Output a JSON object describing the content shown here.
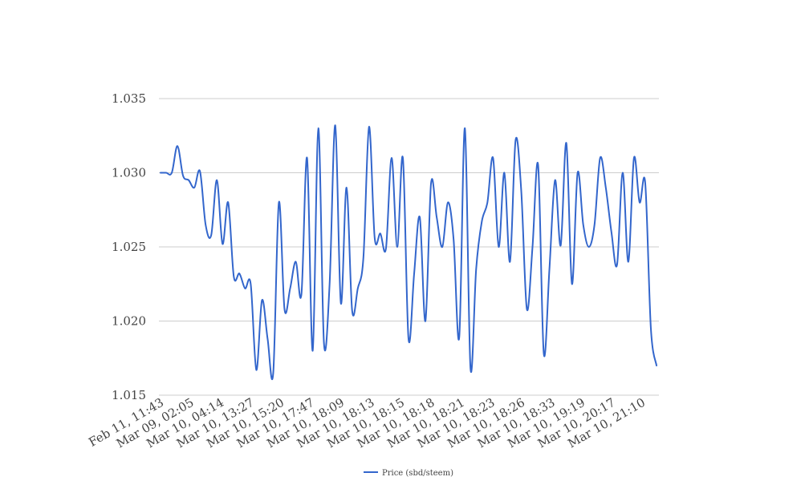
{
  "chart_data": {
    "type": "line",
    "title": "",
    "xlabel": "",
    "ylabel": "",
    "ylim": [
      1.015,
      1.035
    ],
    "yticks": [
      "1.015",
      "1.020",
      "1.025",
      "1.030",
      "1.035"
    ],
    "grid": true,
    "legend_position": "bottom",
    "xtick_labels": [
      "Feb 11, 11:43",
      "Mar 09, 02:05",
      "Mar 10, 04:14",
      "Mar 10, 13:27",
      "Mar 10, 15:20",
      "Mar 10, 17:47",
      "Mar 10, 18:09",
      "Mar 10, 18:13",
      "Mar 10, 18:15",
      "Mar 10, 18:18",
      "Mar 10, 18:21",
      "Mar 10, 18:23",
      "Mar 10, 18:26",
      "Mar 10, 18:33",
      "Mar 10, 19:19",
      "Mar 10, 20:17",
      "Mar 10, 21:10"
    ],
    "series": [
      {
        "name": "Price (sbd/steem)",
        "color": "#3366cc",
        "values": [
          1.03,
          1.03,
          1.03,
          1.0318,
          1.0298,
          1.0295,
          1.029,
          1.0301,
          1.0265,
          1.0258,
          1.0295,
          1.0252,
          1.028,
          1.023,
          1.0232,
          1.0222,
          1.0225,
          1.0167,
          1.0214,
          1.0188,
          1.0165,
          1.028,
          1.0208,
          1.0222,
          1.024,
          1.0218,
          1.031,
          1.018,
          1.033,
          1.0185,
          1.0225,
          1.0332,
          1.0212,
          1.029,
          1.0207,
          1.0222,
          1.0243,
          1.0331,
          1.0256,
          1.0259,
          1.0249,
          1.031,
          1.025,
          1.031,
          1.0188,
          1.0232,
          1.027,
          1.02,
          1.0293,
          1.027,
          1.025,
          1.028,
          1.0255,
          1.0189,
          1.033,
          1.0168,
          1.0235,
          1.0267,
          1.028,
          1.031,
          1.025,
          1.03,
          1.024,
          1.0322,
          1.0288,
          1.0208,
          1.025,
          1.0305,
          1.0178,
          1.0235,
          1.0295,
          1.0251,
          1.032,
          1.0225,
          1.03,
          1.0265,
          1.025,
          1.0265,
          1.031,
          1.029,
          1.026,
          1.0238,
          1.03,
          1.024,
          1.031,
          1.028,
          1.0293,
          1.0195,
          1.017
        ]
      }
    ]
  }
}
